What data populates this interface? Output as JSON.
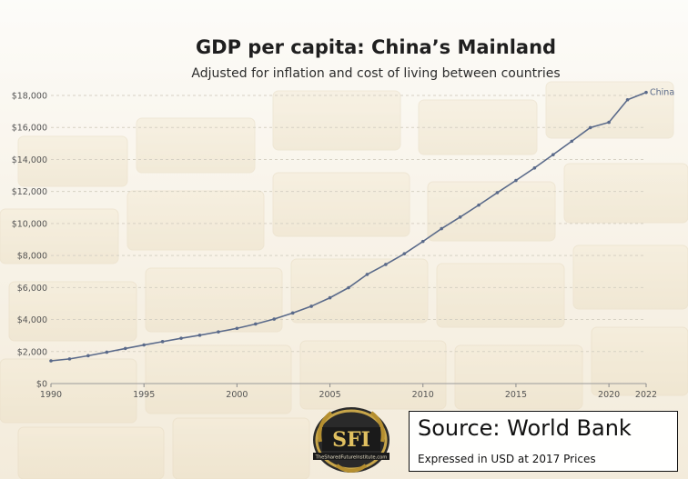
{
  "chart_data": {
    "type": "line",
    "title": "GDP per capita: China’s Mainland",
    "subtitle": "Adjusted for inflation and cost of living between countries",
    "xlabel": "",
    "ylabel": "",
    "x": [
      1990,
      1991,
      1992,
      1993,
      1994,
      1995,
      1996,
      1997,
      1998,
      1999,
      2000,
      2001,
      2002,
      2003,
      2004,
      2005,
      2006,
      2007,
      2008,
      2009,
      2010,
      2011,
      2012,
      2013,
      2014,
      2015,
      2016,
      2017,
      2018,
      2019,
      2020,
      2021,
      2022
    ],
    "series": [
      {
        "name": "China",
        "color": "#5a6a8a",
        "values": [
          1420,
          1540,
          1740,
          1960,
          2190,
          2410,
          2620,
          2830,
          3020,
          3230,
          3450,
          3720,
          4030,
          4410,
          4830,
          5360,
          5990,
          6820,
          7440,
          8110,
          8880,
          9680,
          10400,
          11150,
          11930,
          12690,
          13470,
          14300,
          15140,
          15990,
          16320,
          17730,
          18190
        ]
      }
    ],
    "x_ticks": [
      "1990",
      "1995",
      "2000",
      "2005",
      "2010",
      "2015",
      "2020",
      "2022"
    ],
    "y_ticks": [
      "$0",
      "$2,000",
      "$4,000",
      "$6,000",
      "$8,000",
      "$10,000",
      "$12,000",
      "$14,000",
      "$16,000",
      "$18,000"
    ],
    "ylim": [
      0,
      18000
    ],
    "xlim": [
      1990,
      2022
    ],
    "grid": true
  },
  "source": {
    "title": "Source: World Bank",
    "subtitle": "Expressed in USD at 2017 Prices"
  },
  "logo": {
    "letters": "SFI",
    "caption": "TheSharedFutureInstitute.com"
  }
}
